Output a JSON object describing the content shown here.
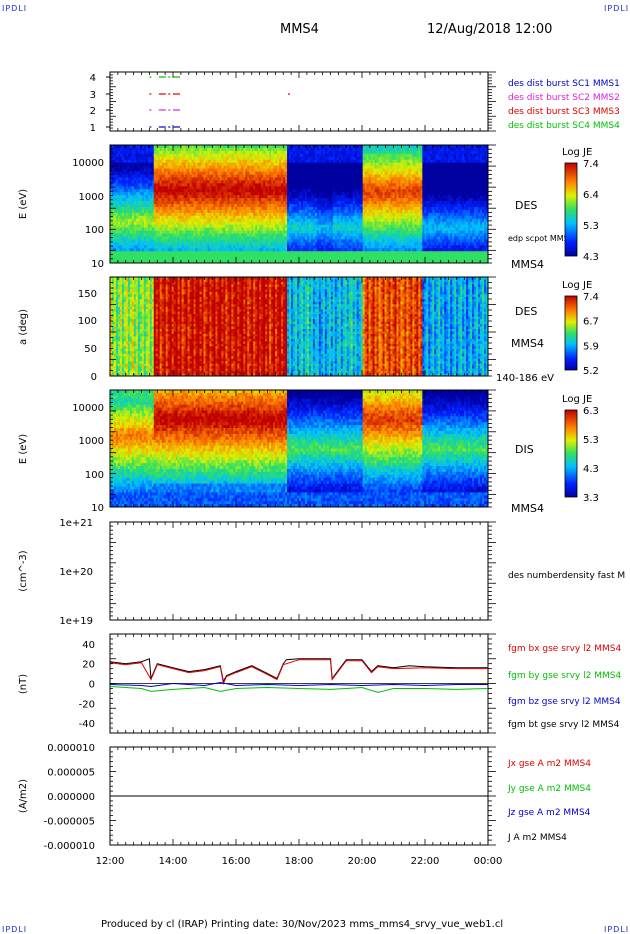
{
  "header": {
    "corner_left": "IPDLI",
    "corner_right": "IPDLI",
    "spacecraft": "MMS4",
    "datetime": "12/Aug/2018 12:00"
  },
  "footer": {
    "text": "Produced by cl (IRAP)   Printing date: 30/Nov/2023   mms_mms4_srvy_vue_web1.cl",
    "corner_left": "IPDLI",
    "corner_right": "IPDLI"
  },
  "colors": {
    "blue": "#0000d0",
    "magenta": "#e020e0",
    "red": "#e00000",
    "green": "#00c000",
    "black": "#000000"
  },
  "chart_data": [
    {
      "type": "scatter",
      "name": "burst-availability",
      "yticks": [
        "1",
        "2",
        "3",
        "4"
      ],
      "legend": [
        {
          "label": "des dist burst SC1 MMS1",
          "color": "#0000d0"
        },
        {
          "label": "des dist burst SC2 MMS2",
          "color": "#e020e0"
        },
        {
          "label": "des dist burst SC3 MMS3",
          "color": "#e00000"
        },
        {
          "label": "des dist burst SC4 MMS4",
          "color": "#00c000"
        }
      ],
      "marks": [
        {
          "sc": 1,
          "t": [
            13.25,
            13.55,
            13.85,
            14.0
          ]
        },
        {
          "sc": 2,
          "t": [
            13.25,
            13.55,
            13.85,
            14.0
          ]
        },
        {
          "sc": 3,
          "t": [
            13.25,
            13.55,
            13.85,
            14.0,
            17.65
          ]
        },
        {
          "sc": 4,
          "t": [
            13.25,
            13.55,
            13.85,
            14.0
          ]
        }
      ]
    },
    {
      "type": "heatmap",
      "name": "des-energy-spectrogram",
      "ylabel": "E (eV)",
      "yticks": [
        "10",
        "100",
        "1000",
        "10000"
      ],
      "instrument": "DES",
      "side_labels": [
        "edp scpot MMS4",
        "MMS4"
      ],
      "colorbar": {
        "title": "Log JE",
        "ticks": [
          "7.4",
          "6.4",
          "5.3",
          "4.3"
        ]
      }
    },
    {
      "type": "heatmap",
      "name": "des-pitch-angle",
      "ylabel": "a (deg)",
      "yticks": [
        "0",
        "50",
        "100",
        "150"
      ],
      "instrument": "DES",
      "side_labels": [
        "MMS4",
        "140-186 eV"
      ],
      "colorbar": {
        "title": "Log JE",
        "ticks": [
          "7.4",
          "6.7",
          "5.9",
          "5.2"
        ]
      }
    },
    {
      "type": "heatmap",
      "name": "dis-energy-spectrogram",
      "ylabel": "E (eV)",
      "yticks": [
        "10",
        "100",
        "1000",
        "10000"
      ],
      "instrument": "DIS",
      "side_labels": [
        "MMS4"
      ],
      "colorbar": {
        "title": "Log JE",
        "ticks": [
          "6.3",
          "5.3",
          "4.3",
          "3.3"
        ]
      }
    },
    {
      "type": "line",
      "name": "density",
      "ylabel": "(cm^-3)",
      "yticks": [
        "1e+19",
        "1e+20",
        "1e+21"
      ],
      "legend": [
        {
          "label": "des numberdensity fast M",
          "color": "#000000"
        }
      ],
      "series": []
    },
    {
      "type": "line",
      "name": "magnetic-field",
      "ylabel": "(nT)",
      "yticks": [
        "-40",
        "-20",
        "0",
        "20",
        "40"
      ],
      "ylim": [
        -50,
        50
      ],
      "legend": [
        {
          "label": "fgm bx gse srvy l2 MMS4",
          "color": "#e00000"
        },
        {
          "label": "fgm by gse srvy l2 MMS4",
          "color": "#00c000"
        },
        {
          "label": "fgm bz gse srvy l2 MMS4",
          "color": "#0000d0"
        },
        {
          "label": "fgm bt gse srvy l2 MMS4",
          "color": "#000000"
        }
      ],
      "series": [
        {
          "key": "bt",
          "color": "#000000",
          "x": [
            12.0,
            12.5,
            13.0,
            13.25,
            13.3,
            13.5,
            14.0,
            14.5,
            15.0,
            15.5,
            15.6,
            15.7,
            16.0,
            16.5,
            17.0,
            17.3,
            17.5,
            17.6,
            18.0,
            18.5,
            19.0,
            19.05,
            19.5,
            20.0,
            20.3,
            20.5,
            21.0,
            21.5,
            22.0,
            23.0,
            24.0
          ],
          "y": [
            22,
            20,
            22,
            25,
            5,
            20,
            16,
            12,
            14,
            18,
            2,
            8,
            12,
            18,
            10,
            5,
            20,
            24,
            25,
            25,
            25,
            5,
            24,
            24,
            12,
            18,
            16,
            18,
            17,
            16,
            16
          ]
        },
        {
          "key": "bx",
          "color": "#e00000",
          "x": [
            12.0,
            12.5,
            13.0,
            13.3,
            13.5,
            14.0,
            14.5,
            15.0,
            15.5,
            15.6,
            15.7,
            16.0,
            16.5,
            17.0,
            17.3,
            17.5,
            18.0,
            19.0,
            19.05,
            19.5,
            20.0,
            20.3,
            20.5,
            21.0,
            22.0,
            23.0,
            24.0
          ],
          "y": [
            21,
            19,
            21,
            4,
            19,
            15,
            11,
            13,
            17,
            0,
            7,
            11,
            17,
            9,
            4,
            19,
            24,
            24,
            4,
            23,
            23,
            11,
            17,
            15,
            16,
            15,
            15
          ]
        },
        {
          "key": "by",
          "color": "#00c000",
          "x": [
            12.0,
            13.0,
            13.3,
            14.0,
            15.0,
            15.5,
            16.0,
            17.0,
            18.0,
            19.0,
            19.5,
            20.0,
            20.5,
            21.0,
            22.0,
            23.0,
            24.0
          ],
          "y": [
            -3,
            -5,
            -8,
            -6,
            -4,
            -8,
            -5,
            -4,
            -5,
            -6,
            -5,
            -4,
            -9,
            -5,
            -5,
            -6,
            -5
          ]
        },
        {
          "key": "bz",
          "color": "#0000d0",
          "x": [
            12.0,
            13.0,
            13.3,
            14.0,
            15.0,
            15.5,
            16.0,
            17.0,
            18.0,
            19.0,
            20.0,
            21.0,
            22.0,
            23.0,
            24.0
          ],
          "y": [
            -1,
            -2,
            -3,
            0,
            -2,
            1,
            -2,
            -1,
            -2,
            -1,
            -2,
            -1,
            -2,
            -1,
            -1
          ]
        }
      ]
    },
    {
      "type": "line",
      "name": "current-density",
      "ylabel": "(A/m2)",
      "yticks": [
        "-0.000010",
        "-0.000005",
        "0.000000",
        "0.000005",
        "0.000010"
      ],
      "ylim": [
        -1e-05,
        1e-05
      ],
      "legend": [
        {
          "label": "Jx gse A m2 MMS4",
          "color": "#e00000"
        },
        {
          "label": "Jy gse A m2 MMS4",
          "color": "#00c000"
        },
        {
          "label": "Jz gse A m2 MMS4",
          "color": "#0000d0"
        },
        {
          "label": "J A m2 MMS4",
          "color": "#000000"
        }
      ],
      "series": [
        {
          "key": "j",
          "color": "#000000",
          "x": [
            12.0,
            24.0
          ],
          "y": [
            0,
            0
          ]
        }
      ]
    }
  ],
  "xaxis": {
    "ticks": [
      "12:00",
      "14:00",
      "16:00",
      "18:00",
      "20:00",
      "22:00",
      "00:00"
    ],
    "range": [
      12,
      24
    ]
  }
}
